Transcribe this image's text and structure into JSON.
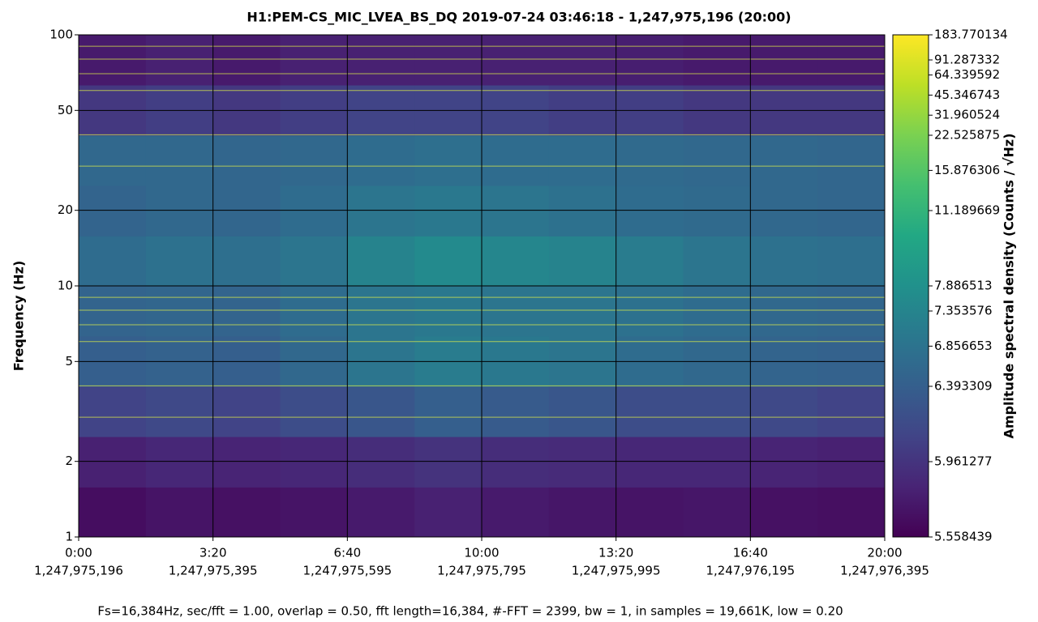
{
  "chart_data": {
    "type": "spectrogram",
    "title": "H1:PEM-CS_MIC_LVEA_BS_DQ 2019-07-24 03:46:18 - 1,247,975,196 (20:00)",
    "ylabel": "Frequency (Hz)",
    "colorbar_label": "Amplitude spectral density (Counts / √Hz)",
    "footer": "Fs=16,384Hz, sec/fft = 1.00, overlap = 0.50, fft length=16,384, #-FFT = 2399, bw = 1, in samples = 19,661K, low = 0.20",
    "xlim": [
      0,
      1200
    ],
    "xticks": [
      {
        "value": 0,
        "label": "0:00"
      },
      {
        "value": 200,
        "label": "3:20"
      },
      {
        "value": 400,
        "label": "6:40"
      },
      {
        "value": 600,
        "label": "10:00"
      },
      {
        "value": 800,
        "label": "13:20"
      },
      {
        "value": 1000,
        "label": "16:40"
      },
      {
        "value": 1200,
        "label": "20:00"
      }
    ],
    "xtick_sublabels": [
      "1,247,975,196",
      "1,247,975,395",
      "1,247,975,595",
      "1,247,975,795",
      "1,247,975,995",
      "1,247,976,195",
      "1,247,976,395"
    ],
    "ylim": [
      1,
      100
    ],
    "ylog": true,
    "yticks": [
      1,
      2,
      5,
      10,
      20,
      50,
      100
    ],
    "yminor": [
      3,
      4,
      6,
      7,
      8,
      9,
      30,
      40,
      60,
      70,
      80,
      90
    ],
    "grid": true,
    "colormap": "viridis",
    "clim": [
      5.558439,
      183.770134
    ],
    "cticks": [
      5.558439,
      5.961277,
      6.393309,
      6.856653,
      7.353576,
      7.886513,
      11.189669,
      15.876306,
      22.525875,
      31.960524,
      45.346743,
      64.339592,
      91.287332,
      183.770134
    ],
    "time_edges": [
      0,
      100,
      200,
      300,
      400,
      500,
      600,
      700,
      800,
      900,
      1000,
      1100,
      1200
    ],
    "freq_edges": [
      1,
      1.58,
      2.51,
      3.98,
      6.31,
      10,
      15.8,
      25.1,
      39.8,
      63.1,
      100
    ],
    "z": [
      [
        5.65,
        5.7,
        5.68,
        5.7,
        5.75,
        5.8,
        5.75,
        5.72,
        5.7,
        5.72,
        5.68,
        5.66
      ],
      [
        5.8,
        5.85,
        5.82,
        5.85,
        5.9,
        5.95,
        5.9,
        5.88,
        5.85,
        5.85,
        5.82,
        5.8
      ],
      [
        6.1,
        6.15,
        6.1,
        6.2,
        6.3,
        6.4,
        6.35,
        6.3,
        6.2,
        6.2,
        6.15,
        6.1
      ],
      [
        6.4,
        6.45,
        6.4,
        6.6,
        6.9,
        7.1,
        7.0,
        6.9,
        6.7,
        6.6,
        6.5,
        6.45
      ],
      [
        6.5,
        6.55,
        6.5,
        6.7,
        6.9,
        7.0,
        6.9,
        6.9,
        6.8,
        6.7,
        6.6,
        6.55
      ],
      [
        6.7,
        6.8,
        6.75,
        6.9,
        7.3,
        7.6,
        7.4,
        7.3,
        7.1,
        6.9,
        6.8,
        6.75
      ],
      [
        6.5,
        6.6,
        6.55,
        6.7,
        6.9,
        7.0,
        6.9,
        6.8,
        6.7,
        6.65,
        6.6,
        6.55
      ],
      [
        6.6,
        6.6,
        6.55,
        6.6,
        6.7,
        6.75,
        6.7,
        6.7,
        6.65,
        6.6,
        6.6,
        6.55
      ],
      [
        6.0,
        6.05,
        6.0,
        6.05,
        6.1,
        6.1,
        6.1,
        6.05,
        6.05,
        6.0,
        6.0,
        6.0
      ],
      [
        5.75,
        5.8,
        5.75,
        5.8,
        5.8,
        5.8,
        5.8,
        5.8,
        5.78,
        5.75,
        5.75,
        5.75
      ]
    ]
  }
}
